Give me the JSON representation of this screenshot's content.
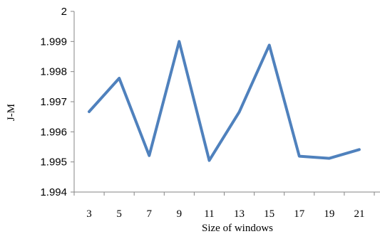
{
  "chart_data": {
    "type": "line",
    "title": "",
    "xlabel": "Size of windows",
    "ylabel": "J-M",
    "x": [
      3,
      5,
      7,
      9,
      11,
      13,
      15,
      17,
      19,
      21
    ],
    "y_tick_labels": [
      "1.994",
      "1.995",
      "1.996",
      "1.997",
      "1.998",
      "1.999",
      "2"
    ],
    "ylim": [
      1.994,
      2.0
    ],
    "grid": false,
    "legend": "none",
    "series": [
      {
        "color": "#4F81BD",
        "values": [
          1.99667,
          1.99778,
          1.99521,
          1.999,
          1.99505,
          1.99666,
          1.99888,
          1.99519,
          1.99512,
          1.99541
        ]
      }
    ]
  }
}
